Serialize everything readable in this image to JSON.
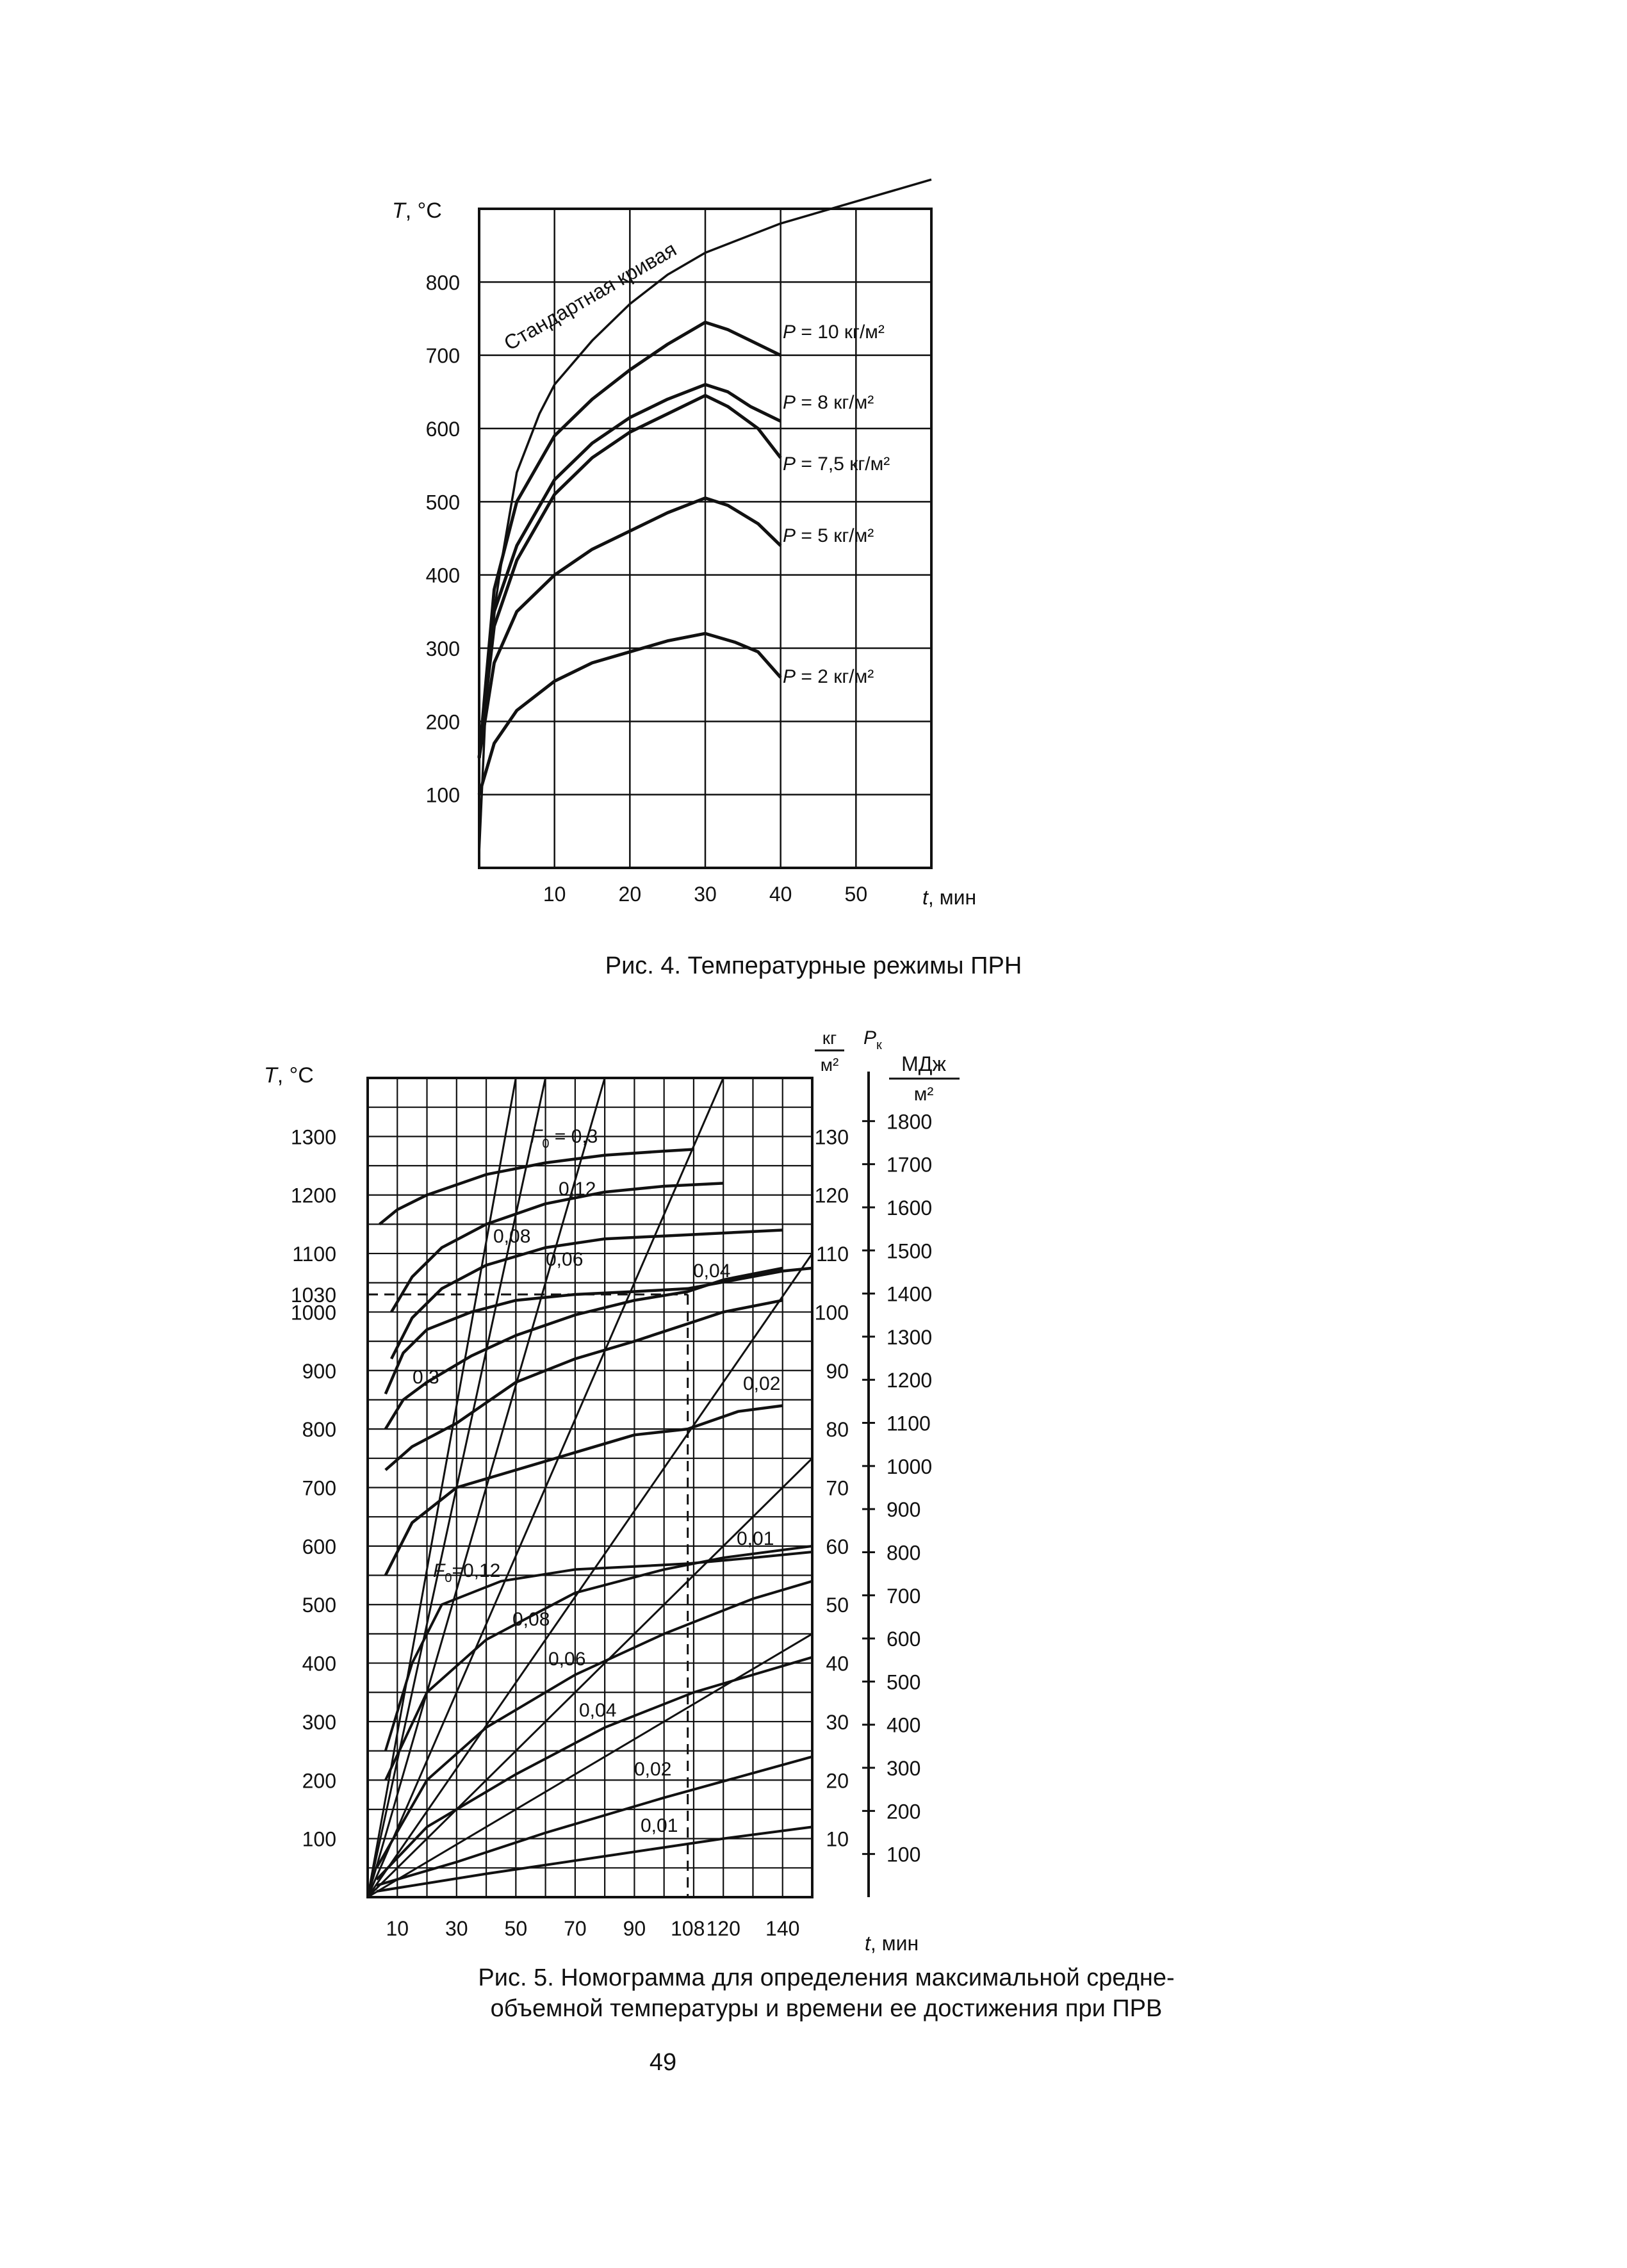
{
  "page_number": "49",
  "chart_data": [
    {
      "type": "line",
      "title": "Рис. 4. Температурные режимы ПРН",
      "ylabel_italic": "T",
      "ylabel_unit": ", °C",
      "xlabel_italic": "t",
      "xlabel_unit": ", мин",
      "xlim": [
        0,
        60
      ],
      "ylim": [
        0,
        900
      ],
      "x_ticks": [
        10,
        20,
        30,
        40,
        50
      ],
      "y_ticks": [
        100,
        200,
        300,
        400,
        500,
        600,
        700,
        800
      ],
      "grid": true,
      "series": [
        {
          "label": "Стандартная кривая",
          "points": [
            [
              0,
              20
            ],
            [
              1,
              250
            ],
            [
              2,
              350
            ],
            [
              3,
              420
            ],
            [
              5,
              540
            ],
            [
              8,
              620
            ],
            [
              10,
              660
            ],
            [
              15,
              720
            ],
            [
              20,
              770
            ],
            [
              25,
              810
            ],
            [
              30,
              840
            ],
            [
              40,
              880
            ],
            [
              50,
              910
            ],
            [
              60,
              940
            ]
          ]
        },
        {
          "label_prefix": "P",
          "label_value": " = 10 кг/м²",
          "points": [
            [
              0,
              150
            ],
            [
              2,
              380
            ],
            [
              5,
              500
            ],
            [
              10,
              590
            ],
            [
              15,
              640
            ],
            [
              20,
              680
            ],
            [
              25,
              715
            ],
            [
              30,
              745
            ],
            [
              33,
              735
            ],
            [
              36,
              720
            ],
            [
              40,
              700
            ]
          ]
        },
        {
          "label_prefix": "P",
          "label_value": " = 8 кг/м²",
          "points": [
            [
              0,
              150
            ],
            [
              2,
              350
            ],
            [
              5,
              440
            ],
            [
              10,
              530
            ],
            [
              15,
              580
            ],
            [
              20,
              615
            ],
            [
              25,
              640
            ],
            [
              30,
              660
            ],
            [
              33,
              650
            ],
            [
              36,
              630
            ],
            [
              40,
              610
            ]
          ]
        },
        {
          "label_prefix": "P",
          "label_value": " = 7,5 кг/м²",
          "points": [
            [
              0,
              150
            ],
            [
              2,
              330
            ],
            [
              5,
              420
            ],
            [
              10,
              510
            ],
            [
              15,
              560
            ],
            [
              20,
              595
            ],
            [
              25,
              620
            ],
            [
              30,
              645
            ],
            [
              33,
              630
            ],
            [
              37,
              600
            ],
            [
              40,
              560
            ]
          ]
        },
        {
          "label_prefix": "P",
          "label_value": " = 5 кг/м²",
          "points": [
            [
              0,
              150
            ],
            [
              2,
              280
            ],
            [
              5,
              350
            ],
            [
              10,
              400
            ],
            [
              15,
              435
            ],
            [
              20,
              460
            ],
            [
              25,
              485
            ],
            [
              30,
              505
            ],
            [
              33,
              495
            ],
            [
              37,
              470
            ],
            [
              40,
              440
            ]
          ]
        },
        {
          "label_prefix": "P",
          "label_value": " = 2 кг/м²",
          "points": [
            [
              0,
              100
            ],
            [
              2,
              170
            ],
            [
              5,
              215
            ],
            [
              10,
              255
            ],
            [
              15,
              280
            ],
            [
              20,
              295
            ],
            [
              25,
              310
            ],
            [
              30,
              320
            ],
            [
              34,
              308
            ],
            [
              37,
              295
            ],
            [
              40,
              260
            ]
          ]
        }
      ]
    },
    {
      "type": "line",
      "title_line1": "Рис. 5. Номограмма для определения максимальной средне-",
      "title_line2": "объемной температуры и времени ее достижения при ПРВ",
      "ylabel_italic": "T",
      "ylabel_unit": ", °C",
      "xlabel_italic": "t",
      "xlabel_unit": ", мин",
      "xlim": [
        0,
        150
      ],
      "ylim": [
        0,
        1400
      ],
      "x_ticks": [
        "10",
        "30",
        "50",
        "70",
        "90",
        "108",
        "120",
        "140"
      ],
      "y_ticks_left": [
        "100",
        "200",
        "300",
        "400",
        "500",
        "600",
        "700",
        "800",
        "900",
        "1000",
        "1030",
        "1100",
        "1200",
        "1300"
      ],
      "load_axis_unit_num": "кг",
      "load_axis_unit_den": "м²",
      "load_axis_ticks": [
        "10",
        "20",
        "30",
        "40",
        "50",
        "60",
        "70",
        "80",
        "90",
        "100",
        "110",
        "120",
        "130"
      ],
      "energy_axis_symbol": "P",
      "energy_axis_sub": "к",
      "energy_axis_unit_num": "МДж",
      "energy_axis_unit_den": "м²",
      "energy_axis_ticks": [
        "100",
        "200",
        "300",
        "400",
        "500",
        "600",
        "700",
        "800",
        "900",
        "1000",
        "1100",
        "1200",
        "1300",
        "1400",
        "1500",
        "1600",
        "1700",
        "1800"
      ],
      "grid": true,
      "upper_curves": [
        {
          "F0": "0,3",
          "points": [
            [
              4,
              1150
            ],
            [
              10,
              1175
            ],
            [
              20,
              1200
            ],
            [
              40,
              1235
            ],
            [
              60,
              1255
            ],
            [
              80,
              1268
            ],
            [
              100,
              1275
            ],
            [
              110,
              1278
            ]
          ]
        },
        {
          "F0": "0,12",
          "points": [
            [
              8,
              1000
            ],
            [
              15,
              1060
            ],
            [
              25,
              1110
            ],
            [
              40,
              1150
            ],
            [
              60,
              1185
            ],
            [
              80,
              1205
            ],
            [
              100,
              1215
            ],
            [
              120,
              1220
            ]
          ]
        },
        {
          "F0": "0,08",
          "points": [
            [
              8,
              920
            ],
            [
              15,
              990
            ],
            [
              25,
              1040
            ],
            [
              40,
              1080
            ],
            [
              60,
              1110
            ],
            [
              80,
              1125
            ],
            [
              100,
              1130
            ],
            [
              120,
              1135
            ],
            [
              140,
              1140
            ]
          ]
        },
        {
          "F0": "0,06",
          "points": [
            [
              6,
              860
            ],
            [
              12,
              930
            ],
            [
              20,
              970
            ],
            [
              35,
              1000
            ],
            [
              50,
              1020
            ],
            [
              70,
              1030
            ],
            [
              90,
              1035
            ],
            [
              108,
              1040
            ],
            [
              140,
              1070
            ],
            [
              150,
              1075
            ]
          ]
        },
        {
          "F0": "0,04",
          "points": [
            [
              6,
              800
            ],
            [
              12,
              850
            ],
            [
              20,
              880
            ],
            [
              35,
              925
            ],
            [
              50,
              960
            ],
            [
              70,
              995
            ],
            [
              90,
              1020
            ],
            [
              108,
              1035
            ],
            [
              120,
              1055
            ],
            [
              140,
              1075
            ]
          ]
        },
        {
          "F0": "0,02",
          "points": [
            [
              6,
              730
            ],
            [
              15,
              770
            ],
            [
              30,
              810
            ],
            [
              50,
              880
            ],
            [
              70,
              920
            ],
            [
              90,
              950
            ],
            [
              108,
              980
            ],
            [
              120,
              1000
            ],
            [
              140,
              1020
            ]
          ]
        },
        {
          "F0": "0,01",
          "points": [
            [
              6,
              550
            ],
            [
              15,
              640
            ],
            [
              30,
              700
            ],
            [
              50,
              730
            ],
            [
              70,
              760
            ],
            [
              90,
              790
            ],
            [
              108,
              800
            ],
            [
              125,
              830
            ],
            [
              140,
              840
            ]
          ]
        }
      ],
      "lower_curves": [
        {
          "F0": "0,12",
          "points": [
            [
              6,
              250
            ],
            [
              15,
              400
            ],
            [
              25,
              500
            ],
            [
              45,
              540
            ],
            [
              70,
              560
            ],
            [
              90,
              565
            ],
            [
              108,
              570
            ],
            [
              130,
              580
            ],
            [
              150,
              590
            ]
          ]
        },
        {
          "F0": "0,08",
          "points": [
            [
              6,
              200
            ],
            [
              20,
              350
            ],
            [
              40,
              440
            ],
            [
              70,
              520
            ],
            [
              100,
              560
            ],
            [
              120,
              580
            ],
            [
              150,
              600
            ]
          ]
        },
        {
          "F0": "0,06",
          "points": [
            [
              3,
              50
            ],
            [
              20,
              200
            ],
            [
              40,
              290
            ],
            [
              70,
              380
            ],
            [
              100,
              450
            ],
            [
              130,
              510
            ],
            [
              150,
              540
            ]
          ]
        },
        {
          "F0": "0,04",
          "points": [
            [
              3,
              30
            ],
            [
              20,
              120
            ],
            [
              50,
              210
            ],
            [
              80,
              290
            ],
            [
              110,
              350
            ],
            [
              150,
              410
            ]
          ]
        },
        {
          "F0": "0,02",
          "points": [
            [
              3,
              20
            ],
            [
              30,
              60
            ],
            [
              60,
              110
            ],
            [
              100,
              170
            ],
            [
              150,
              240
            ]
          ]
        },
        {
          "F0": "0,01",
          "points": [
            [
              3,
              10
            ],
            [
              40,
              40
            ],
            [
              80,
              70
            ],
            [
              120,
              100
            ],
            [
              150,
              120
            ]
          ]
        }
      ],
      "rays": [
        {
          "F0": "0,3",
          "points": [
            [
              0,
              0
            ],
            [
              50,
              1400
            ]
          ]
        },
        {
          "F0": "0,12",
          "points": [
            [
              0,
              0
            ],
            [
              60,
              1400
            ]
          ]
        },
        {
          "F0": "0,08",
          "points": [
            [
              0,
              0
            ],
            [
              80,
              1400
            ]
          ]
        },
        {
          "F0": "0,06",
          "points": [
            [
              0,
              0
            ],
            [
              120,
              1400
            ]
          ]
        },
        {
          "F0": "0,04",
          "points": [
            [
              0,
              0
            ],
            [
              150,
              1100
            ]
          ]
        },
        {
          "F0": "0,02",
          "points": [
            [
              0,
              0
            ],
            [
              150,
              750
            ]
          ]
        },
        {
          "F0": "0,01",
          "points": [
            [
              0,
              0
            ],
            [
              150,
              450
            ]
          ]
        }
      ],
      "example": {
        "t": 108,
        "T": 1030
      },
      "labels_upper": [
        {
          "prefix": "F",
          "sub": "0",
          "value": " = 0,3"
        },
        {
          "value": "0,12"
        },
        {
          "value": "0,08"
        },
        {
          "value": "0,06"
        },
        {
          "value": "0,04"
        },
        {
          "value": "0,3"
        },
        {
          "value": "0,02"
        },
        {
          "value": "0,01"
        }
      ],
      "labels_lower": [
        {
          "prefix": "F",
          "sub": "0",
          "value": "=0,12"
        },
        {
          "value": "0,08"
        },
        {
          "value": "0,06"
        },
        {
          "value": "0,04"
        },
        {
          "value": "0,02"
        },
        {
          "value": "0,01"
        }
      ]
    }
  ]
}
